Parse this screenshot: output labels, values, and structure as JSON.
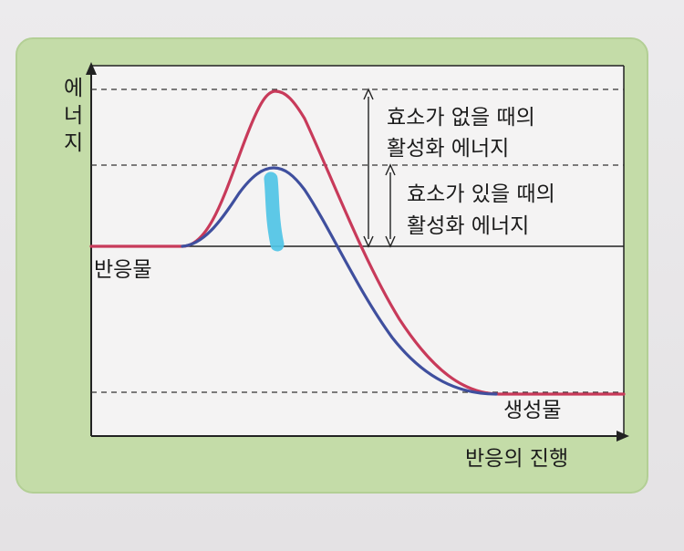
{
  "diagram": {
    "y_axis_label": "에너지",
    "x_axis_label": "반응의 진행",
    "reactant_label": "반응물",
    "product_label": "생성물",
    "without_enzyme_label_line1": "효소가 없을 때의",
    "without_enzyme_label_line2": "활성화 에너지",
    "with_enzyme_label_line1": "효소가 있을 때의",
    "with_enzyme_label_line2": "활성화 에너지"
  },
  "colors": {
    "panel_background": "#c4dca8",
    "plot_background": "#f4f3f3",
    "curve_without_enzyme": "#c83a5a",
    "curve_with_enzyme": "#3f4f9e",
    "highlighter_mark": "#4fc4e6"
  }
}
